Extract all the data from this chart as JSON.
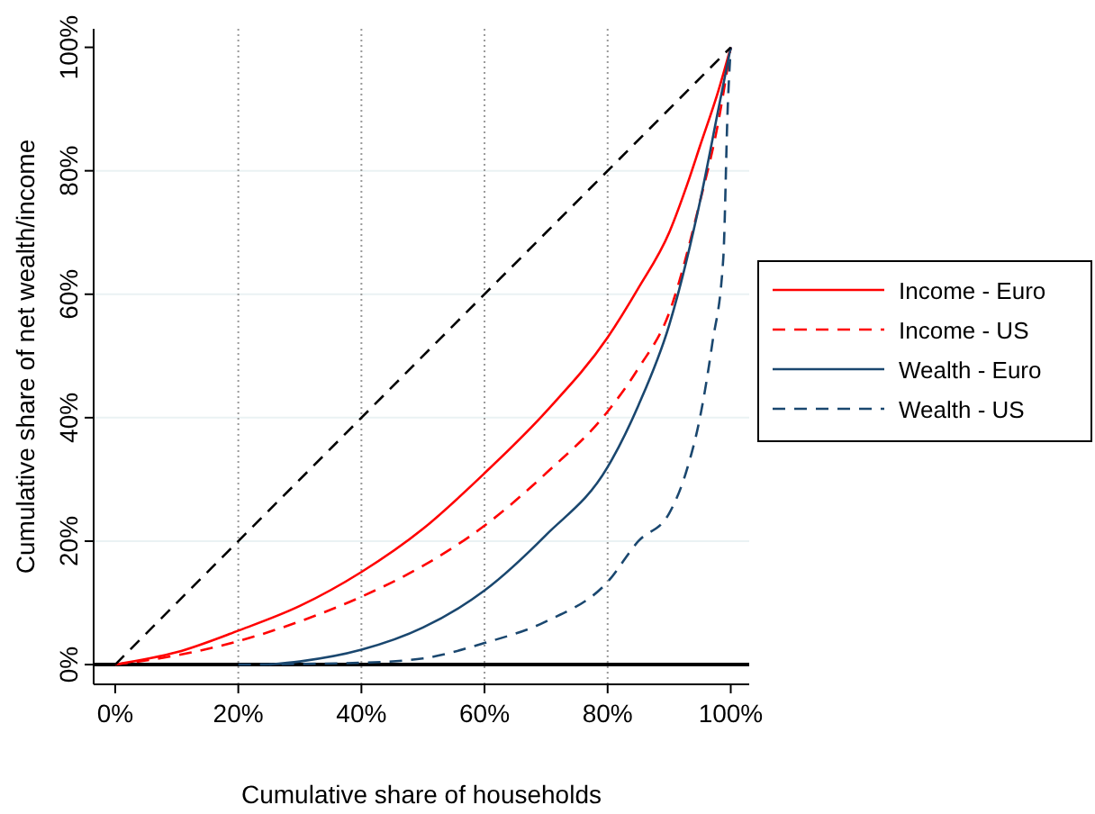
{
  "chart_data": {
    "type": "line",
    "xlabel": "Cumulative share of households",
    "ylabel": "Cumulative share of net wealth/income",
    "xlim": [
      -3.5,
      103
    ],
    "ylim": [
      -3.2,
      103
    ],
    "xticks": [
      {
        "value": 0,
        "label": "0%"
      },
      {
        "value": 20,
        "label": "20%"
      },
      {
        "value": 40,
        "label": "40%"
      },
      {
        "value": 60,
        "label": "60%"
      },
      {
        "value": 80,
        "label": "80%"
      },
      {
        "value": 100,
        "label": "100%"
      }
    ],
    "yticks": [
      {
        "value": 0,
        "label": "0%"
      },
      {
        "value": 20,
        "label": "20%"
      },
      {
        "value": 40,
        "label": "40%"
      },
      {
        "value": 60,
        "label": "60%"
      },
      {
        "value": 80,
        "label": "80%"
      },
      {
        "value": 100,
        "label": "100%"
      }
    ],
    "grid": true,
    "legend": "right",
    "ref_lines": [
      {
        "axis": "y",
        "value": 0,
        "color": "#000000",
        "line_style": "solid"
      }
    ],
    "series": [
      {
        "name": "Income - Euro",
        "color": "#ff0000",
        "line_style": "solid",
        "x": [
          0,
          10,
          20,
          30,
          40,
          50,
          60,
          70,
          80,
          85,
          90,
          93,
          95,
          98,
          100
        ],
        "values": [
          0,
          2,
          5.5,
          9.5,
          15,
          22,
          31,
          41,
          53,
          61,
          70,
          78,
          84,
          93,
          100
        ]
      },
      {
        "name": "Income - US",
        "color": "#ff0000",
        "line_style": "dashed",
        "x": [
          0,
          10,
          20,
          30,
          40,
          50,
          60,
          70,
          80,
          85,
          90,
          95,
          98,
          100
        ],
        "values": [
          0,
          1.5,
          3.8,
          7,
          11,
          16,
          22.5,
          31,
          41,
          48,
          57,
          75,
          88,
          100
        ]
      },
      {
        "name": "Wealth - Euro",
        "color": "#1a476f",
        "line_style": "solid",
        "x": [
          25,
          30,
          40,
          50,
          60,
          70,
          80,
          85,
          90,
          95,
          98,
          100
        ],
        "values": [
          0,
          0.5,
          2.4,
          6,
          12,
          21,
          32,
          42,
          55,
          75,
          90,
          100
        ]
      },
      {
        "name": "Wealth - US",
        "color": "#1a476f",
        "line_style": "dashed",
        "x": [
          20,
          40,
          50,
          60,
          70,
          80,
          85,
          90,
          93,
          95,
          97,
          98.8,
          99.5,
          100
        ],
        "values": [
          0,
          0.3,
          1,
          3.5,
          7,
          13.4,
          20,
          24.5,
          32,
          40,
          52,
          66,
          90,
          100
        ]
      },
      {
        "color": "#000000",
        "line_style": "dashed",
        "x": [
          0,
          100
        ],
        "values": [
          0,
          100
        ]
      }
    ]
  }
}
